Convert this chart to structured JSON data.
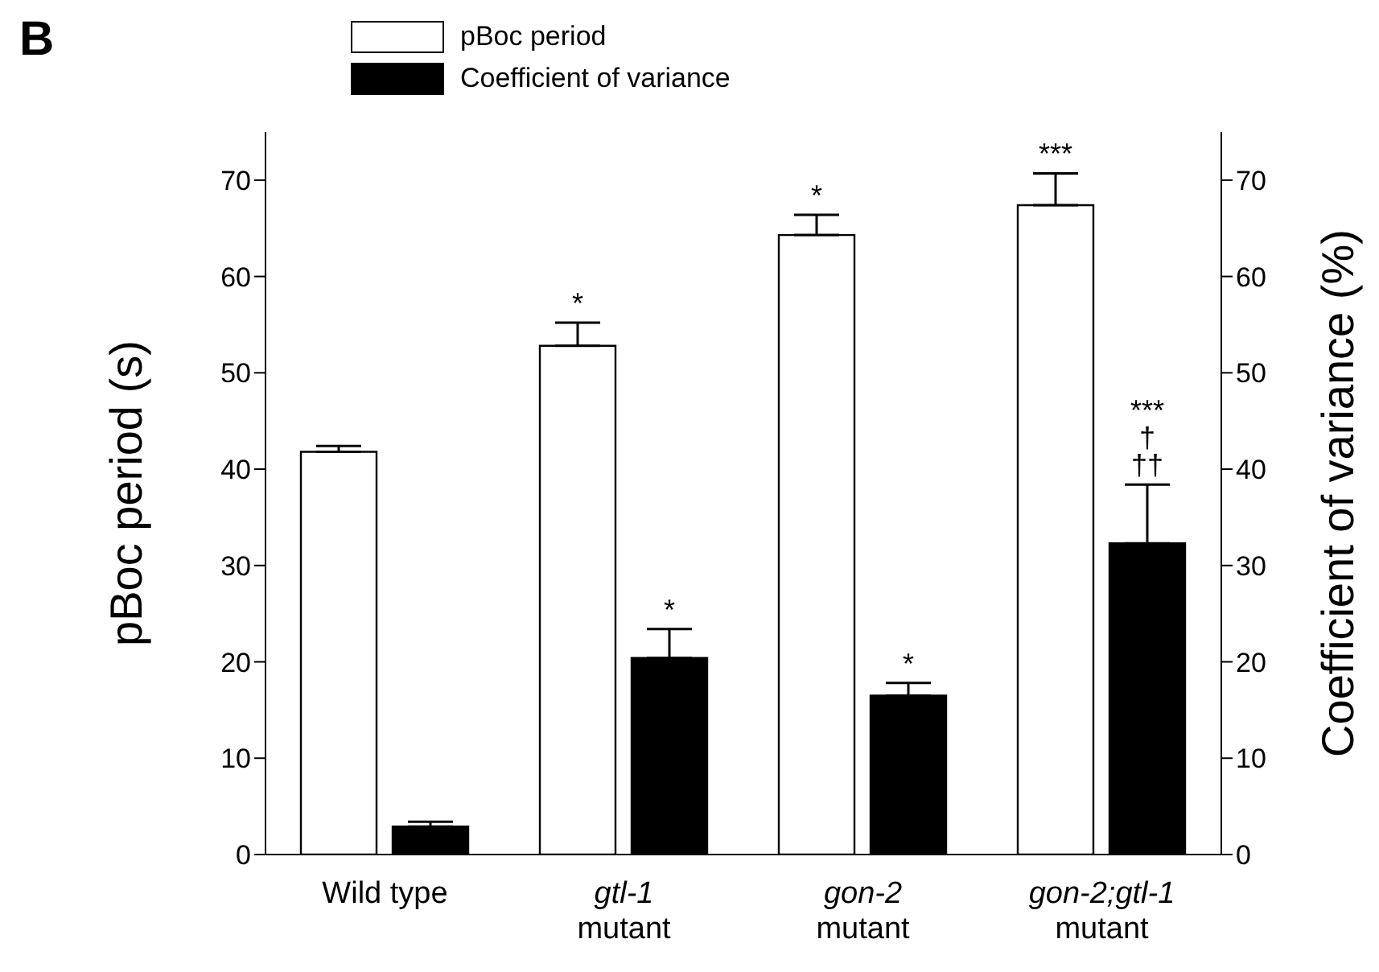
{
  "chart_data": {
    "type": "bar",
    "ylabel": "pBoc period (s)",
    "y2label": "Coefficient of variance (%)",
    "categories": [
      "Wild type",
      "gtl-1\nmutant",
      "gon-2\nmutant",
      "gon-2;gtl-1\nmutant"
    ],
    "series": [
      {
        "name": "pBoc period",
        "color": "#ffffff",
        "values": [
          41.8,
          52.8,
          64.3,
          67.4
        ],
        "errors": [
          0.6,
          2.4,
          2.1,
          3.3
        ]
      },
      {
        "name": "Coefficient of variance",
        "color": "#000000",
        "axis": "y2",
        "values": [
          2.9,
          20.4,
          16.5,
          32.3
        ],
        "errors": [
          0.5,
          3.0,
          1.3,
          6.1
        ]
      }
    ],
    "ylim": [
      0,
      75
    ],
    "yticks": [
      0,
      10,
      20,
      30,
      40,
      50,
      60,
      70
    ],
    "y2lim": [
      0,
      75
    ],
    "y2ticks": [
      0,
      10,
      20,
      30,
      40,
      50,
      60,
      70
    ],
    "grid": false,
    "legend": "top left",
    "annotations": [
      "B",
      "*",
      "*",
      "***",
      "***",
      "†",
      {
        "text": "*",
        "x": "gtl-1\nmutant",
        "y": 20.4
      },
      {
        "text": "*",
        "x": "gon-2\nmutant",
        "y": 16.5
      },
      {
        "text": "††",
        "x": "gon-2;gtl-1\nmutant",
        "y": 32.3
      }
    ]
  }
}
